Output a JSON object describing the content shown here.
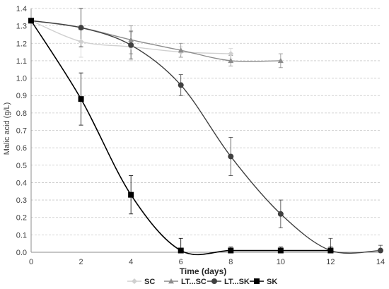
{
  "chart_data": {
    "type": "line",
    "xlabel": "Time (days)",
    "ylabel": "Malic acid (g/L)",
    "xlim": [
      0,
      14
    ],
    "ylim": [
      0,
      1.4
    ],
    "xticks": [
      "0",
      "2",
      "4",
      "6",
      "8",
      "10",
      "12",
      "14"
    ],
    "yticks": [
      "0.0",
      "0.1",
      "0.2",
      "0.3",
      "0.4",
      "0.5",
      "0.6",
      "0.7",
      "0.8",
      "0.9",
      "1.0",
      "1.1",
      "1.2",
      "1.3",
      "1.4"
    ],
    "grid": true,
    "legend_position": "bottom",
    "series": [
      {
        "name": "SC",
        "color": "#d0d0d0",
        "marker": "diamond",
        "x": [
          0,
          2,
          4,
          6,
          8
        ],
        "y": [
          1.33,
          1.21,
          1.18,
          1.15,
          1.14
        ],
        "err": [
          0,
          0.09,
          0.08,
          0.03,
          0.03
        ]
      },
      {
        "name": "LT...SC",
        "color": "#8c8c8c",
        "marker": "triangle",
        "x": [
          0,
          2,
          4,
          6,
          8,
          10
        ],
        "y": [
          1.33,
          1.29,
          1.22,
          1.16,
          1.1,
          1.1
        ],
        "err": [
          0,
          0.11,
          0.08,
          0.04,
          0.03,
          0.04
        ]
      },
      {
        "name": "LT...SK",
        "color": "#404040",
        "marker": "circle",
        "x": [
          0,
          2,
          4,
          6,
          8,
          10,
          12,
          14
        ],
        "y": [
          1.33,
          1.29,
          1.19,
          0.96,
          0.55,
          0.22,
          0.01,
          0.01
        ],
        "err": [
          0,
          0.11,
          0.08,
          0.06,
          0.11,
          0.08,
          0.07,
          0.03
        ]
      },
      {
        "name": "SK",
        "color": "#000000",
        "marker": "square",
        "x": [
          0,
          2,
          4,
          6,
          8,
          10,
          12
        ],
        "y": [
          1.33,
          0.88,
          0.33,
          0.01,
          0.01,
          0.01,
          0.01
        ],
        "err": [
          0,
          0.15,
          0.11,
          0.07,
          0.02,
          0.02,
          0.02
        ]
      }
    ]
  }
}
